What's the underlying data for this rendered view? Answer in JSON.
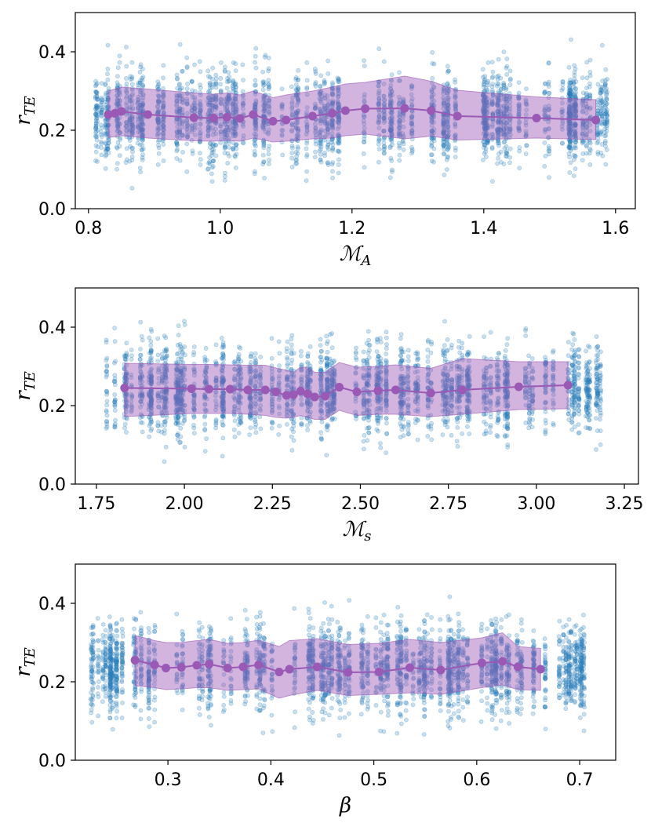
{
  "colors": {
    "scatter": "#2a7fba",
    "band": "#9b59b6",
    "line": "#9b59b6"
  },
  "chart_data": [
    {
      "type": "scatter",
      "title": "",
      "xlabel": "M_A",
      "xlabel_main": "ℳ",
      "xlabel_sub": "A",
      "ylabel": "r_TE",
      "ylabel_main": "r",
      "ylabel_sub": "TE",
      "xlim": [
        0.78,
        1.63
      ],
      "ylim": [
        0.0,
        0.5
      ],
      "xticks": [
        0.8,
        1.0,
        1.2,
        1.4,
        1.6
      ],
      "xtick_labels": [
        "0.8",
        "1.0",
        "1.2",
        "1.4",
        "1.6"
      ],
      "yticks": [
        0.0,
        0.2,
        0.4
      ],
      "ytick_labels": [
        "0.0",
        "0.2",
        "0.4"
      ],
      "scatter_x_range": [
        0.81,
        1.59
      ],
      "scatter_y_center": 0.235,
      "scatter_y_spread": 0.055,
      "binned_mean": {
        "x": [
          0.83,
          0.84,
          0.85,
          0.89,
          0.96,
          0.99,
          1.01,
          1.03,
          1.05,
          1.08,
          1.1,
          1.14,
          1.17,
          1.19,
          1.22,
          1.28,
          1.32,
          1.36,
          1.48,
          1.57
        ],
        "mean": [
          0.24,
          0.243,
          0.248,
          0.24,
          0.232,
          0.231,
          0.233,
          0.23,
          0.24,
          0.223,
          0.226,
          0.236,
          0.243,
          0.25,
          0.255,
          0.256,
          0.25,
          0.236,
          0.231,
          0.226
        ],
        "upper": [
          0.3,
          0.305,
          0.31,
          0.305,
          0.295,
          0.292,
          0.295,
          0.29,
          0.3,
          0.283,
          0.29,
          0.3,
          0.31,
          0.318,
          0.322,
          0.338,
          0.325,
          0.302,
          0.285,
          0.278
        ],
        "lower": [
          0.182,
          0.183,
          0.186,
          0.18,
          0.173,
          0.172,
          0.174,
          0.172,
          0.18,
          0.17,
          0.172,
          0.178,
          0.18,
          0.186,
          0.19,
          0.178,
          0.185,
          0.175,
          0.18,
          0.176
        ]
      }
    },
    {
      "type": "scatter",
      "title": "",
      "xlabel": "M_s",
      "xlabel_main": "ℳ",
      "xlabel_sub": "s",
      "ylabel": "r_TE",
      "ylabel_main": "r",
      "ylabel_sub": "TE",
      "xlim": [
        1.69,
        3.29
      ],
      "ylim": [
        0.0,
        0.5
      ],
      "xticks": [
        1.75,
        2.0,
        2.25,
        2.5,
        2.75,
        3.0,
        3.25
      ],
      "xtick_labels": [
        "1.75",
        "2.00",
        "2.25",
        "2.50",
        "2.75",
        "3.00",
        "3.25"
      ],
      "yticks": [
        0.0,
        0.2,
        0.4
      ],
      "ytick_labels": [
        "0.0",
        "0.2",
        "0.4"
      ],
      "scatter_x_range": [
        1.76,
        3.22
      ],
      "scatter_y_center": 0.24,
      "scatter_y_spread": 0.055,
      "binned_mean": {
        "x": [
          1.83,
          2.02,
          2.07,
          2.13,
          2.18,
          2.23,
          2.26,
          2.29,
          2.31,
          2.33,
          2.35,
          2.37,
          2.4,
          2.44,
          2.49,
          2.55,
          2.6,
          2.7,
          2.79,
          2.95,
          3.09
        ],
        "mean": [
          0.245,
          0.243,
          0.242,
          0.242,
          0.24,
          0.24,
          0.235,
          0.226,
          0.228,
          0.237,
          0.23,
          0.222,
          0.224,
          0.247,
          0.235,
          0.238,
          0.24,
          0.232,
          0.24,
          0.248,
          0.252
        ],
        "upper": [
          0.308,
          0.305,
          0.305,
          0.304,
          0.303,
          0.303,
          0.296,
          0.29,
          0.285,
          0.298,
          0.298,
          0.285,
          0.285,
          0.31,
          0.298,
          0.3,
          0.304,
          0.295,
          0.32,
          0.312,
          0.312
        ],
        "lower": [
          0.172,
          0.18,
          0.18,
          0.18,
          0.178,
          0.175,
          0.17,
          0.168,
          0.17,
          0.175,
          0.17,
          0.165,
          0.165,
          0.188,
          0.175,
          0.178,
          0.178,
          0.172,
          0.178,
          0.19,
          0.192
        ]
      }
    },
    {
      "type": "scatter",
      "title": "",
      "xlabel": "β",
      "xlabel_main": "β",
      "xlabel_sub": "",
      "ylabel": "r_TE",
      "ylabel_main": "r",
      "ylabel_sub": "TE",
      "xlim": [
        0.21,
        0.735
      ],
      "ylim": [
        0.0,
        0.5
      ],
      "xticks": [
        0.3,
        0.4,
        0.5,
        0.6,
        0.7
      ],
      "xtick_labels": [
        "0.3",
        "0.4",
        "0.5",
        "0.6",
        "0.7"
      ],
      "yticks": [
        0.0,
        0.2,
        0.4
      ],
      "ytick_labels": [
        "0.0",
        "0.2",
        "0.4"
      ],
      "scatter_x_range": [
        0.225,
        0.71
      ],
      "scatter_y_center": 0.235,
      "scatter_y_spread": 0.055,
      "binned_mean": {
        "x": [
          0.268,
          0.287,
          0.298,
          0.313,
          0.328,
          0.34,
          0.358,
          0.373,
          0.388,
          0.408,
          0.418,
          0.445,
          0.475,
          0.505,
          0.535,
          0.565,
          0.605,
          0.625,
          0.64,
          0.662
        ],
        "mean": [
          0.255,
          0.243,
          0.235,
          0.237,
          0.242,
          0.245,
          0.235,
          0.238,
          0.243,
          0.225,
          0.232,
          0.238,
          0.224,
          0.225,
          0.236,
          0.23,
          0.248,
          0.252,
          0.238,
          0.232
        ],
        "upper": [
          0.318,
          0.305,
          0.3,
          0.3,
          0.305,
          0.308,
          0.298,
          0.3,
          0.306,
          0.29,
          0.305,
          0.31,
          0.295,
          0.298,
          0.308,
          0.3,
          0.312,
          0.325,
          0.29,
          0.285
        ],
        "lower": [
          0.19,
          0.185,
          0.18,
          0.182,
          0.185,
          0.185,
          0.178,
          0.18,
          0.182,
          0.158,
          0.165,
          0.178,
          0.165,
          0.168,
          0.172,
          0.168,
          0.185,
          0.192,
          0.18,
          0.178
        ]
      }
    }
  ]
}
